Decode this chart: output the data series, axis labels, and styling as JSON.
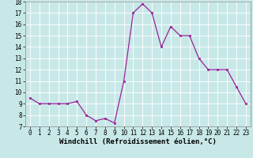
{
  "x": [
    0,
    1,
    2,
    3,
    4,
    5,
    6,
    7,
    8,
    9,
    10,
    11,
    12,
    13,
    14,
    15,
    16,
    17,
    18,
    19,
    20,
    21,
    22,
    23
  ],
  "y": [
    9.5,
    9.0,
    9.0,
    9.0,
    9.0,
    9.2,
    8.0,
    7.5,
    7.7,
    7.3,
    11.0,
    17.0,
    17.8,
    17.0,
    14.0,
    15.8,
    15.0,
    15.0,
    13.0,
    12.0,
    12.0,
    12.0,
    10.5,
    9.0
  ],
  "line_color": "#992299",
  "marker": "s",
  "marker_size": 2,
  "xlabel": "Windchill (Refroidissement éolien,°C)",
  "ylim": [
    7,
    18
  ],
  "xlim": [
    -0.5,
    23.5
  ],
  "yticks": [
    7,
    8,
    9,
    10,
    11,
    12,
    13,
    14,
    15,
    16,
    17,
    18
  ],
  "xticks": [
    0,
    1,
    2,
    3,
    4,
    5,
    6,
    7,
    8,
    9,
    10,
    11,
    12,
    13,
    14,
    15,
    16,
    17,
    18,
    19,
    20,
    21,
    22,
    23
  ],
  "background_color": "#c8e8e8",
  "grid_color": "#b0d0d0",
  "tick_fontsize": 5.5,
  "xlabel_fontsize": 6.5
}
